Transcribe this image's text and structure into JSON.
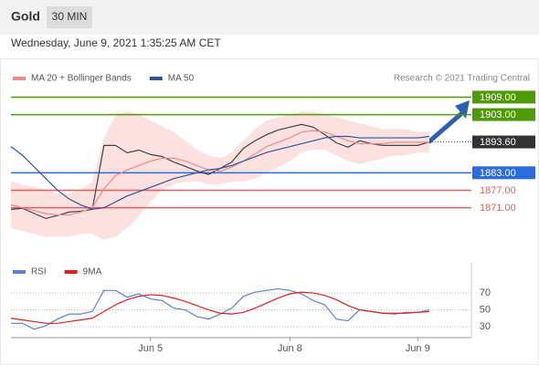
{
  "header": {
    "title": "Gold",
    "interval": "30 MIN",
    "timestamp": "Wednesday, June 9, 2021 1:35:25 AM CET"
  },
  "chart_data": [
    {
      "type": "line",
      "source": "Research © 2021 Trading Central",
      "ylim": [
        1853,
        1922
      ],
      "series": [
        {
          "color": "#444444",
          "values": [
            1870.4,
            1870.8,
            1869,
            1867.3,
            1868.3,
            1869.5,
            1869.8,
            1870.4,
            1892.4,
            1892.4,
            1889.9,
            1890.8,
            1889.3,
            1888.6,
            1886.7,
            1885.2,
            1883.6,
            1882.4,
            1884.5,
            1886.7,
            1891.4,
            1894,
            1896.1,
            1897.7,
            1898.7,
            1899.6,
            1898.7,
            1896.1,
            1893.3,
            1891.8,
            1894,
            1893,
            1892.4,
            1892.4,
            1892.4,
            1892.4,
            1893.6
          ]
        },
        {
          "name": "MA 20 + Bollinger Bands",
          "color": "#f08a8a",
          "values": [
            1872,
            1871,
            1870,
            1869,
            1868.5,
            1868.5,
            1869.5,
            1871,
            1877.5,
            1882,
            1884,
            1885.5,
            1887,
            1888,
            1888,
            1887,
            1885.5,
            1884,
            1883.5,
            1885,
            1887,
            1889.5,
            1892,
            1893.5,
            1895,
            1897,
            1897.5,
            1897,
            1895.5,
            1894,
            1893,
            1893,
            1893,
            1893.5,
            1893.5,
            1893.5,
            1893.5
          ]
        },
        {
          "name": "MA 50",
          "color": "#2f5597",
          "values": [
            1892,
            1889,
            1885,
            1881,
            1877,
            1874,
            1872,
            1870.5,
            1871,
            1873,
            1875,
            1876.5,
            1878,
            1879.5,
            1881,
            1882,
            1883,
            1884,
            1884.5,
            1885.5,
            1887,
            1888.5,
            1890,
            1891,
            1892,
            1893,
            1894,
            1895,
            1895.5,
            1895.5,
            1895,
            1895,
            1895,
            1895,
            1895,
            1895,
            1895.5
          ]
        }
      ],
      "band": {
        "color": "#fde0e0",
        "upper": [
          1880,
          1879,
          1878,
          1877,
          1876,
          1876,
          1877,
          1880,
          1895,
          1903,
          1904,
          1903,
          1901,
          1899,
          1897,
          1894,
          1891,
          1889,
          1888,
          1890,
          1894,
          1898,
          1901,
          1902,
          1903,
          1904,
          1904,
          1903,
          1902,
          1901,
          1900,
          1899,
          1898,
          1898,
          1898,
          1897,
          1897
        ],
        "lower": [
          1864,
          1863,
          1862,
          1861,
          1861,
          1861,
          1862,
          1862,
          1860,
          1861,
          1864,
          1868,
          1873,
          1877,
          1879,
          1880,
          1880,
          1879,
          1879,
          1880,
          1880,
          1881,
          1883,
          1885,
          1887,
          1890,
          1891,
          1891,
          1889,
          1887,
          1886,
          1887,
          1888,
          1889,
          1889,
          1890,
          1890
        ]
      },
      "levels": [
        {
          "value": 1909,
          "label": "1909.00",
          "color": "#4e9a06",
          "boxed": true,
          "line": "solid"
        },
        {
          "value": 1903,
          "label": "1903.00",
          "color": "#4e9a06",
          "boxed": true,
          "line": "solid"
        },
        {
          "value": 1893.6,
          "label": "1893.60",
          "color": "#333333",
          "boxed": true,
          "line": "dotted"
        },
        {
          "value": 1883,
          "label": "1883.00",
          "color": "#2a6be0",
          "boxed": true,
          "line": "solid"
        },
        {
          "value": 1877,
          "label": "1877.00",
          "color": "#e06060",
          "boxed": false,
          "line": "solid"
        },
        {
          "value": 1871,
          "label": "1871.00",
          "color": "#e06060",
          "boxed": false,
          "line": "solid"
        }
      ]
    },
    {
      "type": "line",
      "categories": [
        null,
        null,
        null,
        null,
        null,
        null,
        null,
        null,
        null,
        null,
        null,
        null,
        "Jun 5",
        null,
        null,
        null,
        null,
        null,
        null,
        null,
        null,
        null,
        null,
        null,
        "Jun 8",
        null,
        null,
        null,
        null,
        null,
        null,
        null,
        null,
        null,
        null,
        "Jun 9",
        null
      ],
      "ylim": [
        17,
        82
      ],
      "yticks": [
        30,
        50,
        70
      ],
      "grid": true,
      "series": [
        {
          "name": "RSI",
          "color": "#5b7fd6",
          "values": [
            34,
            34,
            27,
            31,
            39,
            45,
            45,
            48,
            73,
            73,
            65,
            69,
            63,
            61,
            52,
            50,
            42,
            39,
            45,
            52,
            66,
            71,
            73,
            75,
            73,
            69,
            61,
            56,
            39,
            37,
            50,
            48,
            46,
            45,
            47,
            47,
            50
          ]
        },
        {
          "name": "9MA",
          "color": "#e02020",
          "values": [
            40,
            38,
            36,
            34,
            34,
            36,
            38,
            40,
            48,
            56,
            62,
            66,
            68,
            67,
            64,
            60,
            55,
            50,
            46,
            45,
            47,
            52,
            58,
            64,
            69,
            71,
            70,
            67,
            62,
            55,
            50,
            48,
            46,
            46,
            46,
            47,
            48
          ]
        }
      ]
    }
  ]
}
